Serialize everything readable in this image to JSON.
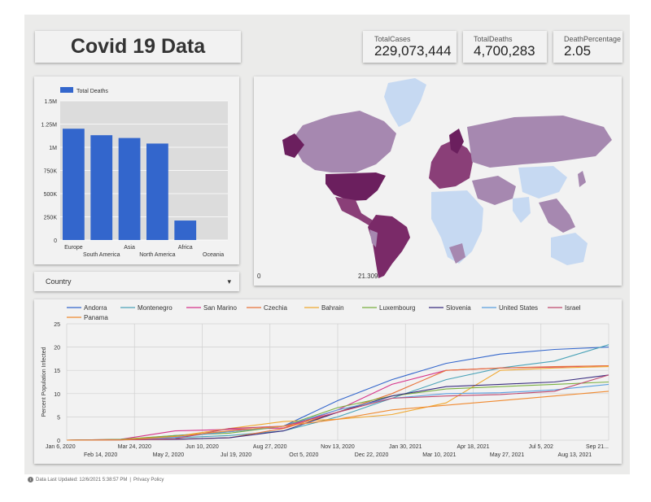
{
  "title": "Covid 19 Data",
  "kpis": [
    {
      "label": "TotalCases",
      "value": "229,073,444"
    },
    {
      "label": "TotalDeaths",
      "value": "4,700,283"
    },
    {
      "label": "DeathPercentage",
      "value": "2.05"
    }
  ],
  "filter": {
    "label": "Country"
  },
  "footer": {
    "updated": "Data Last Updated: 12/6/2021 5:38:57 PM",
    "separator": "|",
    "privacy": "Privacy Policy"
  },
  "colors": {
    "bar": "#3366cc",
    "map_dark": "#6b1f5e",
    "map_light": "#c6d9f2"
  },
  "map": {
    "legend_min": "0",
    "legend_max": "21.309"
  },
  "chart_data": [
    {
      "type": "bar",
      "legend": "Total Deaths",
      "categories": [
        "Europe",
        "South America",
        "Asia",
        "North America",
        "Africa",
        "Oceania"
      ],
      "values": [
        1200000,
        1130000,
        1100000,
        1040000,
        210000,
        0
      ],
      "ylim": [
        0,
        1500000
      ],
      "yticks": [
        "0",
        "250K",
        "500K",
        "750K",
        "1M",
        "1.25M",
        "1.5M"
      ],
      "grid": true,
      "legend_position": "top-left"
    },
    {
      "type": "line",
      "ylabel": "Percent Population Infected",
      "ylim": [
        0,
        25
      ],
      "yticks": [
        "0",
        "5",
        "10",
        "15",
        "20",
        "25"
      ],
      "xticks_top": [
        "Jan 6, 2020",
        "Mar 24, 2020",
        "Jun 10, 2020",
        "Aug 27, 2020",
        "Nov 13, 2020",
        "Jan 30, 2021",
        "Apr 18, 2021",
        "Jul 5, 202",
        "Sep 21..."
      ],
      "xticks_bottom": [
        "Feb 14, 2020",
        "May 2, 2020",
        "Jul 19, 2020",
        "Oct 5, 2020",
        "Dec 22, 2020",
        "Mar 10, 2021",
        "May 27, 2021",
        "Aug 13, 2021"
      ],
      "x": [
        0,
        0.1,
        0.2,
        0.3,
        0.4,
        0.5,
        0.6,
        0.7,
        0.8,
        0.9,
        1.0
      ],
      "legend_position": "top",
      "series": [
        {
          "name": "Andorra",
          "color": "#3366cc",
          "values": [
            0,
            0.1,
            1.0,
            1.8,
            3.0,
            8.5,
            13.0,
            16.5,
            18.5,
            19.5,
            20.0
          ]
        },
        {
          "name": "Montenegro",
          "color": "#4ba3b8",
          "values": [
            0,
            0.1,
            0.5,
            1.0,
            2.0,
            5.0,
            9.0,
            13.0,
            15.5,
            17.0,
            20.5
          ]
        },
        {
          "name": "San Marino",
          "color": "#d6338a",
          "values": [
            0,
            0.2,
            2.0,
            2.3,
            2.6,
            6.5,
            12.0,
            15.0,
            15.5,
            15.7,
            16.0
          ]
        },
        {
          "name": "Czechia",
          "color": "#e8733a",
          "values": [
            0,
            0.1,
            0.2,
            0.5,
            2.5,
            6.0,
            10.0,
            15.0,
            15.5,
            15.8,
            16.0
          ]
        },
        {
          "name": "Bahrain",
          "color": "#f0a830",
          "values": [
            0,
            0.1,
            0.8,
            2.5,
            4.0,
            4.5,
            5.5,
            8.0,
            15.0,
            15.5,
            15.8
          ]
        },
        {
          "name": "Luxembourg",
          "color": "#7ab040",
          "values": [
            0,
            0.2,
            1.0,
            1.5,
            3.0,
            7.0,
            9.5,
            11.0,
            11.5,
            12.0,
            12.5
          ]
        },
        {
          "name": "Slovenia",
          "color": "#3a2d80",
          "values": [
            0,
            0.1,
            0.2,
            0.5,
            2.0,
            6.0,
            9.5,
            11.5,
            12.0,
            12.5,
            14.0
          ]
        },
        {
          "name": "United States",
          "color": "#5aa0e0",
          "values": [
            0,
            0.05,
            0.6,
            1.8,
            3.0,
            6.5,
            9.0,
            10.0,
            10.2,
            10.8,
            12.0
          ]
        },
        {
          "name": "Israel",
          "color": "#c0486e",
          "values": [
            0,
            0.05,
            0.3,
            2.5,
            3.0,
            6.0,
            9.0,
            9.5,
            9.8,
            10.5,
            14.0
          ]
        },
        {
          "name": "Panama",
          "color": "#f08a30",
          "values": [
            0,
            0.05,
            0.8,
            2.0,
            3.0,
            4.5,
            6.5,
            7.5,
            8.5,
            9.5,
            10.5
          ]
        }
      ]
    }
  ]
}
